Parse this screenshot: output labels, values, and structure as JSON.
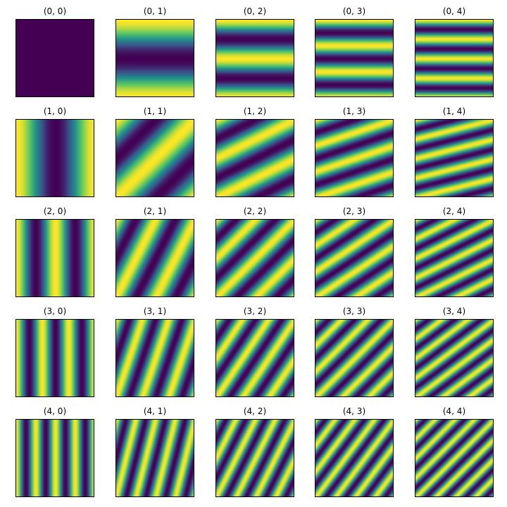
{
  "chart_data": {
    "type": "heatmap",
    "grid": {
      "rows": 5,
      "cols": 5
    },
    "colormap": "viridis",
    "colormap_stops": [
      "#440154",
      "#3b528b",
      "#21918c",
      "#5ec962",
      "#fde725"
    ],
    "function": "cos(2*pi*(k1*x + k2*y)) with k1 = first index, k2 = second index",
    "axes_visible": false,
    "panels": [
      {
        "title": "(0, 0)",
        "k1": 0,
        "k2": 0
      },
      {
        "title": "(0, 1)",
        "k1": 0,
        "k2": 1
      },
      {
        "title": "(0, 2)",
        "k1": 0,
        "k2": 2
      },
      {
        "title": "(0, 3)",
        "k1": 0,
        "k2": 3
      },
      {
        "title": "(0, 4)",
        "k1": 0,
        "k2": 4
      },
      {
        "title": "(1, 0)",
        "k1": 1,
        "k2": 0
      },
      {
        "title": "(1, 1)",
        "k1": 1,
        "k2": 1
      },
      {
        "title": "(1, 2)",
        "k1": 1,
        "k2": 2
      },
      {
        "title": "(1, 3)",
        "k1": 1,
        "k2": 3
      },
      {
        "title": "(1, 4)",
        "k1": 1,
        "k2": 4
      },
      {
        "title": "(2, 0)",
        "k1": 2,
        "k2": 0
      },
      {
        "title": "(2, 1)",
        "k1": 2,
        "k2": 1
      },
      {
        "title": "(2, 2)",
        "k1": 2,
        "k2": 2
      },
      {
        "title": "(2, 3)",
        "k1": 2,
        "k2": 3
      },
      {
        "title": "(2, 4)",
        "k1": 2,
        "k2": 4
      },
      {
        "title": "(3, 0)",
        "k1": 3,
        "k2": 0
      },
      {
        "title": "(3, 1)",
        "k1": 3,
        "k2": 1
      },
      {
        "title": "(3, 2)",
        "k1": 3,
        "k2": 2
      },
      {
        "title": "(3, 3)",
        "k1": 3,
        "k2": 3
      },
      {
        "title": "(3, 4)",
        "k1": 3,
        "k2": 4
      },
      {
        "title": "(4, 0)",
        "k1": 4,
        "k2": 0
      },
      {
        "title": "(4, 1)",
        "k1": 4,
        "k2": 1
      },
      {
        "title": "(4, 2)",
        "k1": 4,
        "k2": 2
      },
      {
        "title": "(4, 3)",
        "k1": 4,
        "k2": 3
      },
      {
        "title": "(4, 4)",
        "k1": 4,
        "k2": 4
      }
    ]
  }
}
